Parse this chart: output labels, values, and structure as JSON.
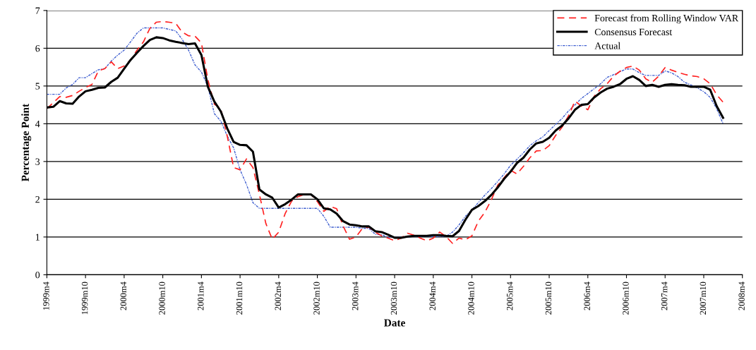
{
  "chart_data": {
    "type": "line",
    "xlabel": "Date",
    "ylabel": "Percentage Point",
    "categories": [
      "1999m4",
      null,
      null,
      null,
      null,
      null,
      "1999m10",
      null,
      null,
      null,
      null,
      null,
      "2000m4",
      null,
      null,
      null,
      null,
      null,
      "2000m10",
      null,
      null,
      null,
      null,
      null,
      "2001m4",
      null,
      null,
      null,
      null,
      null,
      "2001m10",
      null,
      null,
      null,
      null,
      null,
      "2002m4",
      null,
      null,
      null,
      null,
      null,
      "2002m10",
      null,
      null,
      null,
      null,
      null,
      "2003m4",
      null,
      null,
      null,
      null,
      null,
      "2003m10",
      null,
      null,
      null,
      null,
      null,
      "2004m4",
      null,
      null,
      null,
      null,
      null,
      "2004m10",
      null,
      null,
      null,
      null,
      null,
      "2005m4",
      null,
      null,
      null,
      null,
      null,
      "2005m10",
      null,
      null,
      null,
      null,
      null,
      "2006m4",
      null,
      null,
      null,
      null,
      null,
      "2006m10",
      null,
      null,
      null,
      null,
      null,
      "2007m4",
      null,
      null,
      null,
      null,
      null,
      "2007m10",
      null,
      null,
      null,
      null,
      null,
      "2008m4"
    ],
    "series": [
      {
        "name": "Forecast from Rolling Window VAR",
        "color": "#ff2020",
        "line_style": "dashed",
        "values": [
          4.4,
          4.56,
          4.72,
          4.7,
          4.75,
          4.86,
          4.96,
          5.04,
          5.4,
          5.46,
          5.64,
          5.46,
          5.53,
          5.69,
          5.95,
          6.17,
          6.53,
          6.69,
          6.71,
          6.69,
          6.66,
          6.43,
          6.33,
          6.32,
          6.14,
          5.17,
          4.52,
          4.4,
          3.68,
          2.84,
          2.78,
          3.07,
          2.84,
          2.13,
          1.36,
          0.94,
          1.13,
          1.62,
          1.95,
          2.07,
          2.13,
          2.13,
          1.94,
          1.68,
          1.81,
          1.75,
          1.29,
          0.94,
          1.0,
          1.23,
          1.26,
          1.13,
          1.03,
          0.97,
          0.9,
          0.97,
          1.1,
          1.05,
          0.97,
          0.9,
          0.97,
          1.13,
          1.01,
          0.83,
          0.97,
          0.93,
          1.03,
          1.42,
          1.65,
          1.98,
          2.37,
          2.57,
          2.77,
          2.67,
          2.87,
          3.1,
          3.28,
          3.29,
          3.42,
          3.69,
          3.91,
          4.21,
          4.6,
          4.47,
          4.37,
          4.73,
          4.93,
          5.06,
          5.26,
          5.39,
          5.49,
          5.53,
          5.42,
          5.19,
          5.1,
          5.26,
          5.49,
          5.42,
          5.36,
          5.31,
          5.27,
          5.25,
          5.19,
          5.06,
          4.77,
          4.57,
          null,
          null,
          null
        ]
      },
      {
        "name": "Consensus Forecast",
        "color": "#000000",
        "line_style": "solid",
        "values": [
          4.43,
          4.45,
          4.6,
          4.54,
          4.53,
          4.72,
          4.86,
          4.9,
          4.95,
          4.96,
          5.11,
          5.22,
          5.46,
          5.69,
          5.88,
          6.06,
          6.22,
          6.29,
          6.27,
          6.21,
          6.17,
          6.14,
          6.11,
          6.13,
          5.82,
          4.98,
          4.59,
          4.33,
          3.88,
          3.52,
          3.44,
          3.43,
          3.26,
          2.26,
          2.13,
          2.04,
          1.78,
          1.87,
          1.99,
          2.13,
          2.13,
          2.13,
          2.0,
          1.76,
          1.73,
          1.62,
          1.42,
          1.33,
          1.31,
          1.28,
          1.28,
          1.15,
          1.13,
          1.06,
          0.98,
          0.98,
          1.01,
          1.03,
          1.03,
          1.03,
          1.05,
          1.05,
          1.03,
          1.02,
          1.16,
          1.46,
          1.72,
          1.82,
          1.95,
          2.11,
          2.31,
          2.54,
          2.73,
          2.96,
          3.1,
          3.32,
          3.48,
          3.52,
          3.63,
          3.82,
          3.95,
          4.14,
          4.37,
          4.5,
          4.52,
          4.7,
          4.83,
          4.93,
          4.98,
          5.05,
          5.19,
          5.26,
          5.16,
          5.0,
          5.03,
          4.98,
          5.03,
          5.05,
          5.03,
          5.02,
          4.98,
          4.98,
          4.98,
          4.9,
          4.47,
          4.16,
          null,
          null,
          null
        ]
      },
      {
        "name": "Actual",
        "color": "#4060d0",
        "line_style": "dotted",
        "values": [
          4.78,
          4.78,
          4.78,
          4.95,
          5.04,
          5.22,
          5.22,
          5.33,
          5.43,
          5.46,
          5.66,
          5.82,
          5.95,
          6.17,
          6.4,
          6.54,
          6.54,
          6.54,
          6.54,
          6.5,
          6.46,
          6.24,
          5.95,
          5.56,
          5.37,
          4.98,
          4.27,
          4.07,
          3.68,
          3.36,
          2.78,
          2.39,
          1.91,
          1.76,
          1.76,
          1.76,
          1.76,
          1.76,
          1.76,
          1.76,
          1.76,
          1.76,
          1.76,
          1.55,
          1.26,
          1.26,
          1.26,
          1.26,
          1.26,
          1.23,
          1.23,
          1.07,
          1.06,
          0.99,
          0.99,
          1.0,
          1.0,
          1.01,
          1.01,
          1.01,
          1.01,
          1.01,
          1.02,
          1.13,
          1.32,
          1.55,
          1.72,
          1.91,
          2.11,
          2.28,
          2.47,
          2.67,
          2.9,
          3.06,
          3.23,
          3.42,
          3.55,
          3.65,
          3.82,
          3.98,
          4.14,
          4.34,
          4.5,
          4.67,
          4.8,
          4.93,
          5.06,
          5.23,
          5.3,
          5.38,
          5.45,
          5.45,
          5.35,
          5.28,
          5.28,
          5.28,
          5.4,
          5.35,
          5.25,
          5.1,
          5.03,
          4.95,
          4.85,
          4.7,
          4.4,
          4.0,
          null,
          null,
          null
        ]
      }
    ],
    "ylim": [
      0,
      7
    ],
    "yticks": [
      0,
      1,
      2,
      3,
      4,
      5,
      6,
      7
    ],
    "grid": "y",
    "legend": "top right"
  }
}
